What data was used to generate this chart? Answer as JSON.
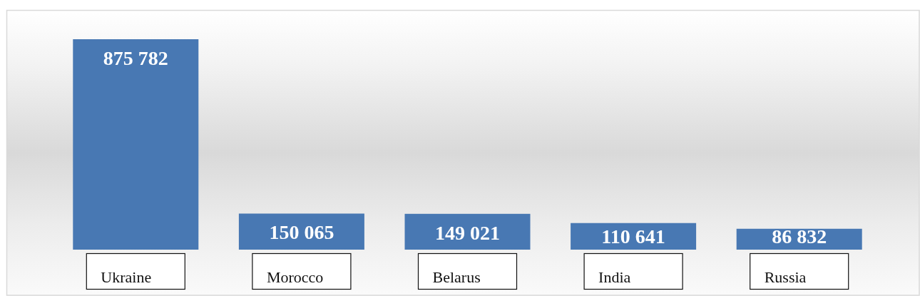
{
  "chart_data": {
    "type": "bar",
    "categories": [
      "Ukraine",
      "Morocco",
      "Belarus",
      "India",
      "Russia"
    ],
    "values": [
      875782,
      150065,
      149021,
      110641,
      86832
    ],
    "value_labels": [
      "875 782",
      "150 065",
      "149 021",
      "110 641",
      "86 832"
    ],
    "color": "#4878b3"
  }
}
